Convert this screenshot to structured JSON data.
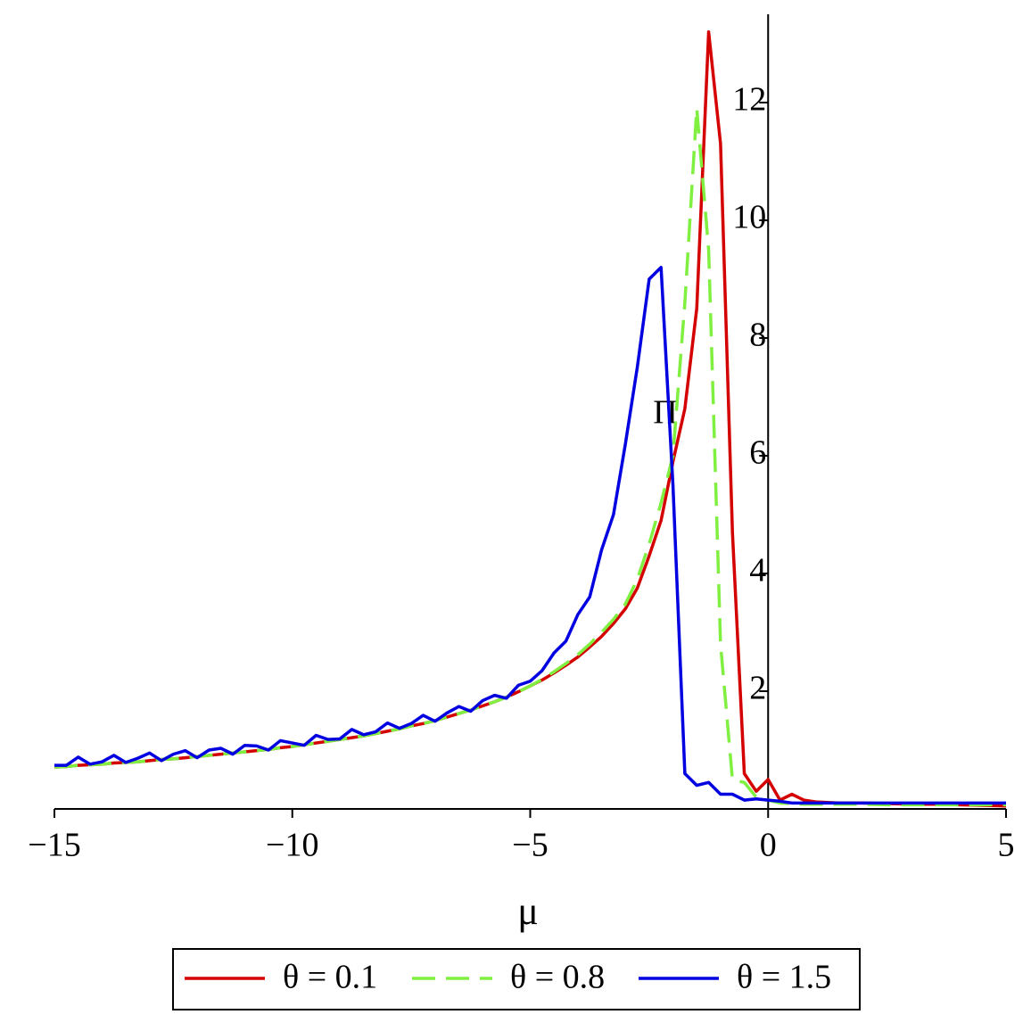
{
  "chart_data": {
    "type": "line",
    "xlabel": "μ",
    "ylabel": "Π",
    "x": [
      -15,
      -14.75,
      -14.5,
      -14.25,
      -14,
      -13.75,
      -13.5,
      -13.25,
      -13,
      -12.75,
      -12.5,
      -12.25,
      -12,
      -11.75,
      -11.5,
      -11.25,
      -11,
      -10.75,
      -10.5,
      -10.25,
      -10,
      -9.75,
      -9.5,
      -9.25,
      -9,
      -8.75,
      -8.5,
      -8.25,
      -8,
      -7.75,
      -7.5,
      -7.25,
      -7,
      -6.75,
      -6.5,
      -6.25,
      -6,
      -5.75,
      -5.5,
      -5.25,
      -5,
      -4.75,
      -4.5,
      -4.25,
      -4,
      -3.75,
      -3.5,
      -3.25,
      -3,
      -2.75,
      -2.5,
      -2.25,
      -2,
      -1.75,
      -1.5,
      -1.25,
      -1,
      -0.75,
      -0.5,
      -0.25,
      0,
      0.25,
      0.5,
      0.75,
      1,
      1.5,
      2,
      2.5,
      3,
      3.5,
      4,
      4.5,
      5
    ],
    "series": [
      {
        "name": "θ = 0.1",
        "color": "#d40000",
        "dash": false,
        "values": [
          0.71,
          0.72,
          0.74,
          0.75,
          0.76,
          0.78,
          0.79,
          0.8,
          0.82,
          0.84,
          0.85,
          0.87,
          0.89,
          0.91,
          0.93,
          0.95,
          0.97,
          0.99,
          1.01,
          1.04,
          1.06,
          1.09,
          1.12,
          1.15,
          1.18,
          1.21,
          1.24,
          1.28,
          1.32,
          1.36,
          1.41,
          1.45,
          1.5,
          1.56,
          1.62,
          1.68,
          1.75,
          1.82,
          1.9,
          1.99,
          2.09,
          2.19,
          2.31,
          2.44,
          2.58,
          2.75,
          2.93,
          3.15,
          3.4,
          3.75,
          4.3,
          4.9,
          5.9,
          6.8,
          8.5,
          13.2,
          11.3,
          4.7,
          0.6,
          0.3,
          0.5,
          0.15,
          0.25,
          0.15,
          0.12,
          0.1,
          0.1,
          0.09,
          0.08,
          0.08,
          0.07,
          0.06,
          0.05
        ]
      },
      {
        "name": "θ = 0.8",
        "color": "#80f040",
        "dash": true,
        "values": [
          0.71,
          0.72,
          0.74,
          0.75,
          0.76,
          0.78,
          0.79,
          0.8,
          0.82,
          0.84,
          0.85,
          0.87,
          0.89,
          0.91,
          0.93,
          0.95,
          0.97,
          0.99,
          1.01,
          1.04,
          1.06,
          1.09,
          1.12,
          1.15,
          1.18,
          1.21,
          1.24,
          1.28,
          1.32,
          1.36,
          1.41,
          1.45,
          1.5,
          1.56,
          1.62,
          1.68,
          1.75,
          1.82,
          1.9,
          1.99,
          2.09,
          2.2,
          2.33,
          2.47,
          2.62,
          2.8,
          3.0,
          3.22,
          3.48,
          3.9,
          4.5,
          5.2,
          6.0,
          8.6,
          11.9,
          9.5,
          2.8,
          0.5,
          0.45,
          0.2,
          0.15,
          0.1,
          0.09,
          0.08,
          0.08,
          0.08,
          0.08,
          0.07,
          0.07,
          0.07,
          0.07,
          0.07,
          0.07
        ]
      },
      {
        "name": "θ = 1.5",
        "color": "#0000e0",
        "dash": false,
        "values": [
          0.74,
          0.74,
          0.88,
          0.76,
          0.8,
          0.91,
          0.79,
          0.86,
          0.95,
          0.82,
          0.93,
          0.99,
          0.87,
          1.0,
          1.03,
          0.93,
          1.08,
          1.07,
          1.0,
          1.16,
          1.12,
          1.08,
          1.25,
          1.18,
          1.19,
          1.35,
          1.26,
          1.31,
          1.46,
          1.37,
          1.45,
          1.59,
          1.49,
          1.63,
          1.74,
          1.66,
          1.84,
          1.93,
          1.88,
          2.1,
          2.17,
          2.35,
          2.65,
          2.85,
          3.3,
          3.6,
          4.4,
          5.0,
          6.2,
          7.5,
          9.0,
          9.2,
          5.5,
          0.6,
          0.4,
          0.45,
          0.25,
          0.25,
          0.15,
          0.17,
          0.15,
          0.13,
          0.1,
          0.1,
          0.1,
          0.1,
          0.1,
          0.1,
          0.1,
          0.1,
          0.1,
          0.1,
          0.1
        ]
      }
    ],
    "xlim": [
      -15,
      5
    ],
    "ylim": [
      0,
      13.5
    ],
    "xticks": [
      {
        "value": -15,
        "label": "−15"
      },
      {
        "value": -10,
        "label": "−10"
      },
      {
        "value": -5,
        "label": "−5"
      },
      0,
      5
    ],
    "yticks": [
      2,
      4,
      6,
      8,
      10,
      12
    ],
    "legend": "bottom"
  }
}
